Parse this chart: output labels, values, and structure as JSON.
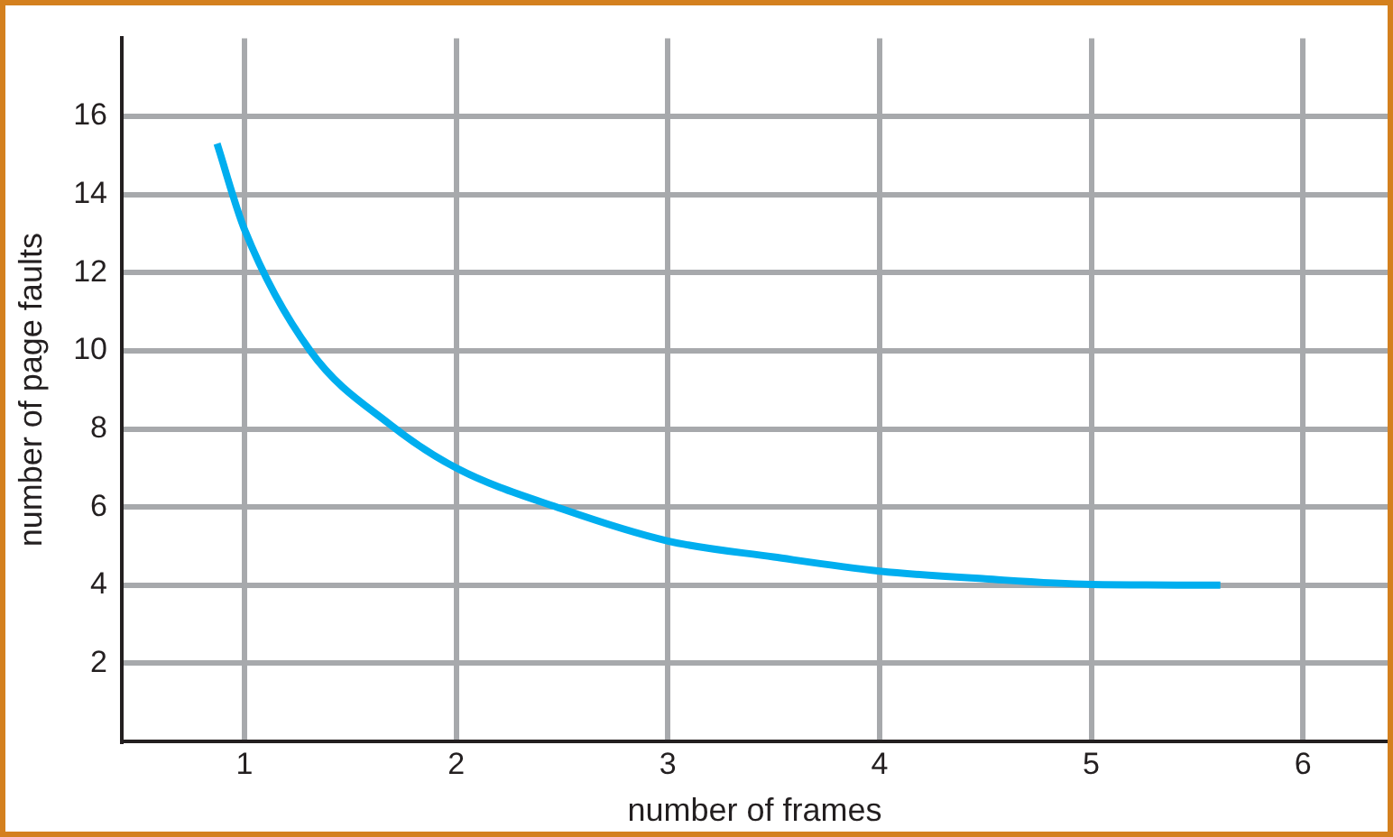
{
  "chart_data": {
    "type": "line",
    "xlabel": "number of frames",
    "ylabel": "number of page faults",
    "x": [
      0.87,
      1,
      1.31,
      1.69,
      2,
      2.5,
      3,
      3.5,
      4,
      4.5,
      5,
      5.61
    ],
    "series": [
      {
        "color": "#00aeef",
        "values": [
          15.3,
          13.1,
          10,
          8.1,
          7,
          5.95,
          5.13,
          4.72,
          4.36,
          4.16,
          4.02,
          4
        ]
      }
    ],
    "xlim": [
      0.42,
      6.4
    ],
    "xticks": [
      1,
      2,
      3,
      4,
      5,
      6
    ],
    "ylim": [
      0,
      18
    ],
    "yticks": [
      2,
      4,
      6,
      8,
      10,
      12,
      14,
      16
    ],
    "grid": true,
    "legend": false,
    "marker": "none",
    "line_style": "solid"
  }
}
